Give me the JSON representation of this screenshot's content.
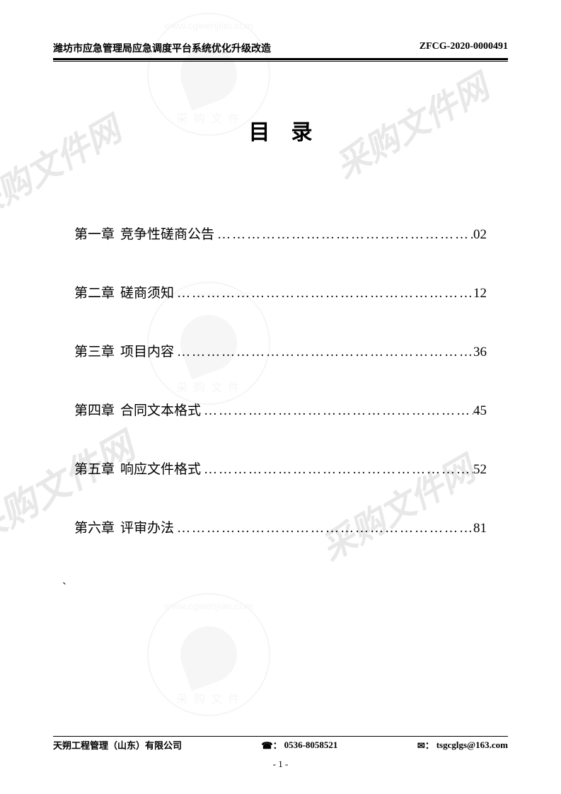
{
  "header": {
    "left": "潍坊市应急管理局应急调度平台系统优化升级改造",
    "right": "ZFCG-2020-0000491"
  },
  "title": "目录",
  "watermark": {
    "text": "采购文件网",
    "url_text": "www.cgwenjian.com",
    "circle_bottom": "采 购 文 件",
    "color": "#e8e8e8"
  },
  "toc": [
    {
      "chapter": "第一章",
      "name": "竞争性磋商公告",
      "page": "02"
    },
    {
      "chapter": "第二章",
      "name": "磋商须知",
      "page": "12"
    },
    {
      "chapter": "第三章",
      "name": "项目内容",
      "page": "36"
    },
    {
      "chapter": "第四章",
      "name": "合同文本格式",
      "page": "45"
    },
    {
      "chapter": "第五章",
      "name": "响应文件格式",
      "page": "52"
    },
    {
      "chapter": "第六章",
      "name": "评审办法",
      "page": "81"
    }
  ],
  "footer": {
    "company": "天朔工程管理（山东）有限公司",
    "phone_label": "☎：",
    "phone": "0536-8058521",
    "email_label": "✉：",
    "email": "tsgcglgs@163.com",
    "page_number": "- 1 -"
  },
  "stray_char": "`",
  "colors": {
    "text": "#000000",
    "background": "#ffffff",
    "watermark": "#e8e8e8",
    "rule": "#000000"
  },
  "fonts": {
    "body": "SimSun",
    "title": "SimHei",
    "title_size_pt": 22,
    "toc_size_pt": 14,
    "header_size_pt": 10,
    "footer_size_pt": 10
  }
}
